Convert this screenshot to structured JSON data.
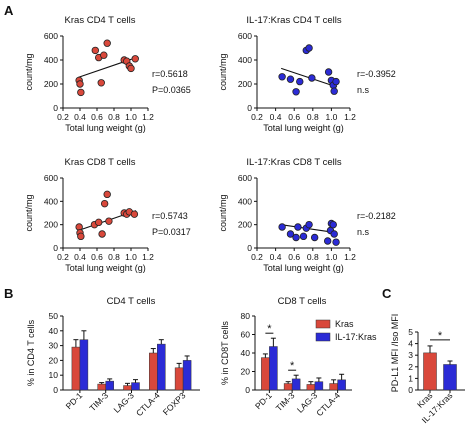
{
  "panel_letters": {
    "a": "A",
    "b": "B",
    "c": "C"
  },
  "colors": {
    "kras": "#d9483b",
    "il17kras": "#2b2bd6",
    "line": "#111111",
    "err": "#111111"
  },
  "chart_data": [
    {
      "id": "a1",
      "type": "scatter",
      "title": "Kras CD4 T cells",
      "xlabel": "Total lung weight (g)",
      "ylabel": "count/mg",
      "xlim": [
        0.2,
        1.2
      ],
      "ylim": [
        0,
        600
      ],
      "xticks": [
        "0.2",
        "0.4",
        "0.6",
        "0.8",
        "1.0",
        "1.2"
      ],
      "yticks": [
        "0",
        "200",
        "400",
        "600"
      ],
      "color": "kras",
      "points": [
        [
          0.39,
          230
        ],
        [
          0.4,
          200
        ],
        [
          0.41,
          130
        ],
        [
          0.58,
          480
        ],
        [
          0.62,
          420
        ],
        [
          0.65,
          210
        ],
        [
          0.68,
          440
        ],
        [
          0.72,
          540
        ],
        [
          0.92,
          400
        ],
        [
          0.95,
          390
        ],
        [
          0.98,
          350
        ],
        [
          1.0,
          330
        ],
        [
          1.05,
          410
        ]
      ],
      "fit": [
        [
          0.38,
          255
        ],
        [
          1.06,
          420
        ]
      ],
      "stats": [
        "r=0.5618",
        "P=0.0365"
      ]
    },
    {
      "id": "a2",
      "type": "scatter",
      "title": "IL-17:Kras CD4 T cells",
      "xlabel": "Total lung weight (g)",
      "ylabel": "count/mg",
      "xlim": [
        0.2,
        1.2
      ],
      "ylim": [
        0,
        600
      ],
      "xticks": [
        "0.2",
        "0.4",
        "0.6",
        "0.8",
        "1.0",
        "1.2"
      ],
      "yticks": [
        "0",
        "200",
        "400",
        "600"
      ],
      "color": "il17kras",
      "points": [
        [
          0.47,
          260
        ],
        [
          0.56,
          240
        ],
        [
          0.62,
          135
        ],
        [
          0.66,
          220
        ],
        [
          0.73,
          480
        ],
        [
          0.76,
          500
        ],
        [
          0.79,
          250
        ],
        [
          0.97,
          300
        ],
        [
          1.0,
          230
        ],
        [
          1.02,
          190
        ],
        [
          1.03,
          140
        ],
        [
          1.05,
          220
        ]
      ],
      "fit": [
        [
          0.46,
          330
        ],
        [
          1.06,
          175
        ]
      ],
      "stats": [
        "r=-0.3952",
        "n.s"
      ]
    },
    {
      "id": "a3",
      "type": "scatter",
      "title": "Kras CD8 T cells",
      "xlabel": "Total lung weight (g)",
      "ylabel": "count/mg",
      "xlim": [
        0.2,
        1.2
      ],
      "ylim": [
        0,
        600
      ],
      "xticks": [
        "0.2",
        "0.4",
        "0.6",
        "0.8",
        "1.0",
        "1.2"
      ],
      "yticks": [
        "0",
        "200",
        "400",
        "600"
      ],
      "color": "kras",
      "points": [
        [
          0.39,
          180
        ],
        [
          0.4,
          130
        ],
        [
          0.41,
          100
        ],
        [
          0.57,
          200
        ],
        [
          0.62,
          220
        ],
        [
          0.66,
          120
        ],
        [
          0.69,
          380
        ],
        [
          0.72,
          460
        ],
        [
          0.74,
          230
        ],
        [
          0.92,
          300
        ],
        [
          0.95,
          290
        ],
        [
          0.98,
          310
        ],
        [
          1.04,
          290
        ]
      ],
      "fit": [
        [
          0.38,
          150
        ],
        [
          1.06,
          320
        ]
      ],
      "stats": [
        "r=0.5743",
        "P=0.0317"
      ]
    },
    {
      "id": "a4",
      "type": "scatter",
      "title": "IL-17:Kras CD8 T cells",
      "xlabel": "Total lung weight (g)",
      "ylabel": "count/mg",
      "xlim": [
        0.2,
        1.2
      ],
      "ylim": [
        0,
        600
      ],
      "xticks": [
        "0.2",
        "0.4",
        "0.6",
        "0.8",
        "1.0",
        "1.2"
      ],
      "yticks": [
        "0",
        "200",
        "400",
        "600"
      ],
      "color": "il17kras",
      "points": [
        [
          0.47,
          180
        ],
        [
          0.56,
          120
        ],
        [
          0.62,
          90
        ],
        [
          0.64,
          180
        ],
        [
          0.7,
          100
        ],
        [
          0.73,
          170
        ],
        [
          0.76,
          200
        ],
        [
          0.82,
          90
        ],
        [
          0.96,
          60
        ],
        [
          0.99,
          150
        ],
        [
          1.0,
          210
        ],
        [
          1.02,
          200
        ],
        [
          1.03,
          120
        ],
        [
          1.05,
          50
        ]
      ],
      "fit": [
        [
          0.46,
          200
        ],
        [
          1.06,
          130
        ]
      ],
      "stats": [
        "r=-0.2182",
        "n.s"
      ]
    },
    {
      "id": "b1",
      "type": "bar",
      "title": "CD4 T cells",
      "ylabel": "% in CD4 T cells",
      "ylim": [
        0,
        50
      ],
      "yticks": [
        "0",
        "10",
        "20",
        "30",
        "40",
        "50"
      ],
      "categories": [
        "PD-1",
        "TIM-3",
        "LAG-3",
        "CTLA-4",
        "FOXP3"
      ],
      "series": [
        {
          "color": "kras",
          "values": [
            29,
            4,
            3,
            25,
            15
          ],
          "errors": [
            5,
            1,
            1.5,
            3,
            3
          ]
        },
        {
          "color": "il17kras",
          "values": [
            34,
            6,
            5,
            31,
            20
          ],
          "errors": [
            6,
            1.5,
            2,
            3,
            3
          ]
        }
      ],
      "significance": []
    },
    {
      "id": "b2",
      "type": "bar",
      "title": "CD8 T cells",
      "ylabel": "% in CD8T cells",
      "ylim": [
        0,
        80
      ],
      "yticks": [
        "0",
        "20",
        "40",
        "60",
        "80"
      ],
      "categories": [
        "PD-1",
        "TIM-3",
        "LAG-3",
        "CTLA-4"
      ],
      "series": [
        {
          "name": "Kras",
          "color": "kras",
          "values": [
            35,
            7,
            6,
            7
          ],
          "errors": [
            4,
            2,
            3,
            4
          ]
        },
        {
          "name": "IL-17:Kras",
          "color": "il17kras",
          "values": [
            47,
            12,
            9,
            11
          ],
          "errors": [
            9,
            4,
            4,
            6
          ]
        }
      ],
      "significance": [
        {
          "category": 0,
          "label": "*"
        },
        {
          "category": 1,
          "label": "*"
        }
      ]
    },
    {
      "id": "c",
      "type": "bar",
      "ylabel": "PD-L1 MFI /Iso MFI",
      "ylim": [
        0,
        5
      ],
      "yticks": [
        "0",
        "1",
        "2",
        "3",
        "4",
        "5"
      ],
      "categories": [
        "Kras",
        "IL-17:Kras"
      ],
      "values": [
        3.2,
        2.2
      ],
      "errors": [
        0.6,
        0.3
      ],
      "colors": [
        "kras",
        "il17kras"
      ],
      "significance": [
        {
          "label": "*"
        }
      ]
    }
  ]
}
